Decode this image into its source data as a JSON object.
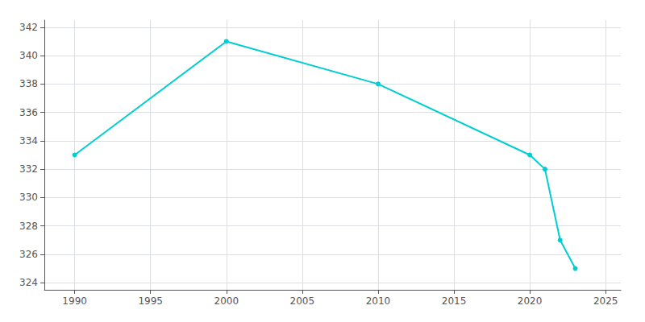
{
  "chart_data": {
    "type": "line",
    "x": [
      1990,
      2000,
      2010,
      2020,
      2021,
      2022,
      2023
    ],
    "values": [
      333,
      341,
      338,
      333,
      332,
      327,
      325
    ],
    "color": "#00CED1",
    "marker": "circle",
    "xlim": [
      1988,
      2026
    ],
    "ylim": [
      323.5,
      342.5
    ],
    "xticks": [
      1990,
      1995,
      2000,
      2005,
      2010,
      2015,
      2020,
      2025
    ],
    "yticks": [
      324,
      326,
      328,
      330,
      332,
      334,
      336,
      338,
      340,
      342
    ],
    "grid": true
  }
}
